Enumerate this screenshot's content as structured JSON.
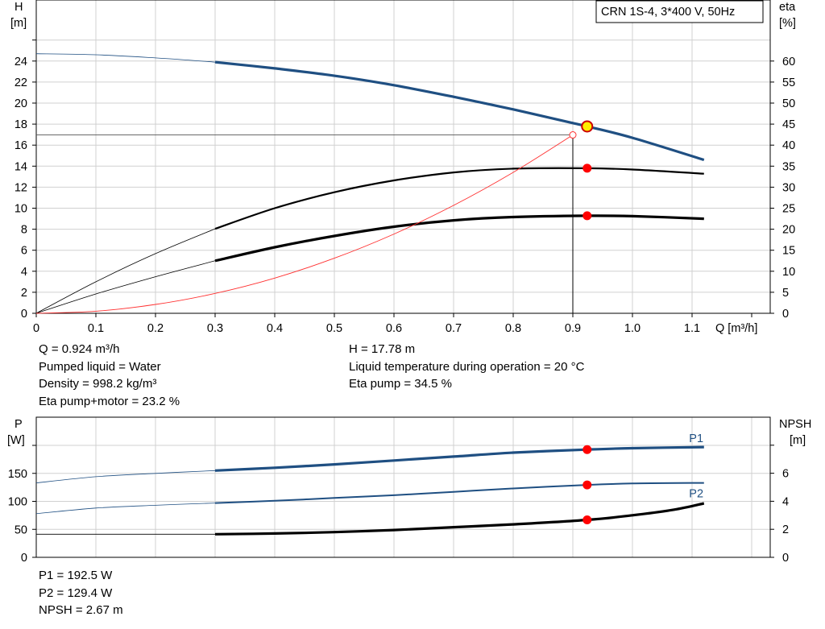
{
  "title": "CRN 1S-4, 3*400 V, 50Hz",
  "top_chart": {
    "left_axis_label": "H",
    "left_axis_unit": "[m]",
    "right_axis_label": "eta",
    "right_axis_unit": "[%]",
    "x_axis_label": "Q [m³/h]"
  },
  "bottom_chart": {
    "left_axis_label": "P",
    "left_axis_unit": "[W]",
    "right_axis_label": "NPSH",
    "right_axis_unit": "[m]"
  },
  "info_left": [
    "Q = 0.924 m³/h",
    "Pumped liquid = Water",
    "Density = 998.2 kg/m³",
    "Eta pump+motor = 23.2 %"
  ],
  "info_right": [
    "H = 17.78 m",
    "Liquid temperature during operation = 20 °C",
    "Eta pump = 34.5 %"
  ],
  "info_bottom": [
    "P1 = 192.5 W",
    "P2 = 129.4 W",
    "NPSH = 2.67 m"
  ],
  "colors": {
    "head_curve": "#1f4f82",
    "power_curve": "#1f4f82",
    "efficiency_curve": "#000000",
    "system_curve": "#ff3030",
    "duty_point": "#ff0000",
    "duty_point_head": "#ffee00",
    "grid": "#d0d0d0"
  },
  "chart_data": [
    {
      "type": "line",
      "title": "CRN 1S-4, 3*400 V, 50Hz",
      "xlabel": "Q [m³/h]",
      "ylabel": "H [m]",
      "y2label": "eta [%]",
      "xlim": [
        0,
        1.2
      ],
      "ylim": [
        0,
        26
      ],
      "y2lim": [
        0,
        65
      ],
      "x_ticks": [
        "0",
        "0.1",
        "0.2",
        "0.3",
        "0.4",
        "0.5",
        "0.6",
        "0.7",
        "0.8",
        "0.9",
        "1.0",
        "1.1"
      ],
      "y_ticks": [
        "0",
        "2",
        "4",
        "6",
        "8",
        "10",
        "12",
        "14",
        "16",
        "18",
        "20",
        "22",
        "24"
      ],
      "y2_ticks": [
        "0",
        "5",
        "10",
        "15",
        "20",
        "25",
        "30",
        "35",
        "40",
        "45",
        "50",
        "55",
        "60"
      ],
      "grid": true,
      "series": [
        {
          "axis": "left",
          "role": "head",
          "points": [
            [
              0,
              24.7
            ],
            [
              0.1,
              24.6
            ],
            [
              0.2,
              24.3
            ],
            [
              0.3,
              23.9
            ],
            [
              0.4,
              23.3
            ],
            [
              0.5,
              22.6
            ],
            [
              0.6,
              21.7
            ],
            [
              0.7,
              20.6
            ],
            [
              0.8,
              19.4
            ],
            [
              0.9,
              18.1
            ],
            [
              0.924,
              17.78
            ],
            [
              1.0,
              16.7
            ],
            [
              1.12,
              14.6
            ]
          ],
          "operating_range": [
            0.3,
            1.12
          ]
        },
        {
          "axis": "right",
          "role": "eta-pump",
          "points": [
            [
              0,
              0
            ],
            [
              0.1,
              7.5
            ],
            [
              0.2,
              14.2
            ],
            [
              0.3,
              20.1
            ],
            [
              0.4,
              25.0
            ],
            [
              0.5,
              28.8
            ],
            [
              0.6,
              31.6
            ],
            [
              0.7,
              33.5
            ],
            [
              0.8,
              34.4
            ],
            [
              0.924,
              34.5
            ],
            [
              1.0,
              34.2
            ],
            [
              1.12,
              33.2
            ]
          ],
          "operating_range": [
            0.3,
            1.12
          ]
        },
        {
          "axis": "right",
          "role": "eta-pump-motor",
          "points": [
            [
              0,
              0
            ],
            [
              0.1,
              4.6
            ],
            [
              0.2,
              8.7
            ],
            [
              0.3,
              12.5
            ],
            [
              0.4,
              15.7
            ],
            [
              0.5,
              18.4
            ],
            [
              0.6,
              20.6
            ],
            [
              0.7,
              22.1
            ],
            [
              0.8,
              22.9
            ],
            [
              0.924,
              23.2
            ],
            [
              1.0,
              23.1
            ],
            [
              1.12,
              22.5
            ]
          ],
          "operating_range": [
            0.3,
            1.12
          ]
        },
        {
          "axis": "left",
          "role": "system-curve",
          "points": [
            [
              0,
              0
            ],
            [
              0.1,
              0.2
            ],
            [
              0.2,
              0.84
            ],
            [
              0.3,
              1.89
            ],
            [
              0.4,
              3.35
            ],
            [
              0.5,
              5.24
            ],
            [
              0.6,
              7.54
            ],
            [
              0.7,
              10.27
            ],
            [
              0.8,
              13.41
            ],
            [
              0.9,
              16.97
            ]
          ]
        }
      ],
      "duty_point": {
        "q": 0.924,
        "h": 17.78,
        "eta_pump": 34.5,
        "eta_pump_motor": 23.2
      },
      "reference_point": {
        "q": 0.9,
        "h": 16.97
      }
    },
    {
      "type": "line",
      "ylabel": "P [W]",
      "y2label": "NPSH [m]",
      "xlim": [
        0,
        1.2
      ],
      "ylim": [
        0,
        200
      ],
      "y2lim": [
        0,
        8
      ],
      "y_ticks": [
        "0",
        "50",
        "100",
        "150"
      ],
      "y2_ticks": [
        "0",
        "2",
        "4",
        "6"
      ],
      "grid": true,
      "series": [
        {
          "name": "P1",
          "axis": "left",
          "points": [
            [
              0,
              133
            ],
            [
              0.1,
              144
            ],
            [
              0.2,
              150
            ],
            [
              0.3,
              155
            ],
            [
              0.4,
              160
            ],
            [
              0.5,
              166
            ],
            [
              0.6,
              173
            ],
            [
              0.7,
              180
            ],
            [
              0.8,
              187
            ],
            [
              0.924,
              192.5
            ],
            [
              1.0,
              195
            ],
            [
              1.12,
              197
            ]
          ],
          "operating_range": [
            0.3,
            1.12
          ]
        },
        {
          "name": "P2",
          "axis": "left",
          "points": [
            [
              0,
              78
            ],
            [
              0.1,
              88
            ],
            [
              0.2,
              93
            ],
            [
              0.3,
              97
            ],
            [
              0.4,
              101
            ],
            [
              0.5,
              106
            ],
            [
              0.6,
              111
            ],
            [
              0.7,
              117
            ],
            [
              0.8,
              123
            ],
            [
              0.924,
              129.4
            ],
            [
              1.0,
              132
            ],
            [
              1.12,
              133
            ]
          ],
          "operating_range": [
            0.3,
            1.12
          ]
        },
        {
          "axis": "right",
          "role": "npsh",
          "points": [
            [
              0.3,
              1.65
            ],
            [
              0.4,
              1.7
            ],
            [
              0.5,
              1.8
            ],
            [
              0.6,
              1.95
            ],
            [
              0.7,
              2.15
            ],
            [
              0.8,
              2.35
            ],
            [
              0.924,
              2.67
            ],
            [
              1.0,
              3.0
            ],
            [
              1.07,
              3.4
            ],
            [
              1.12,
              3.85
            ]
          ],
          "extension_level": 1.65
        }
      ],
      "duty_point": {
        "q": 0.924,
        "p1": 192.5,
        "p2": 129.4,
        "npsh": 2.67
      }
    }
  ]
}
